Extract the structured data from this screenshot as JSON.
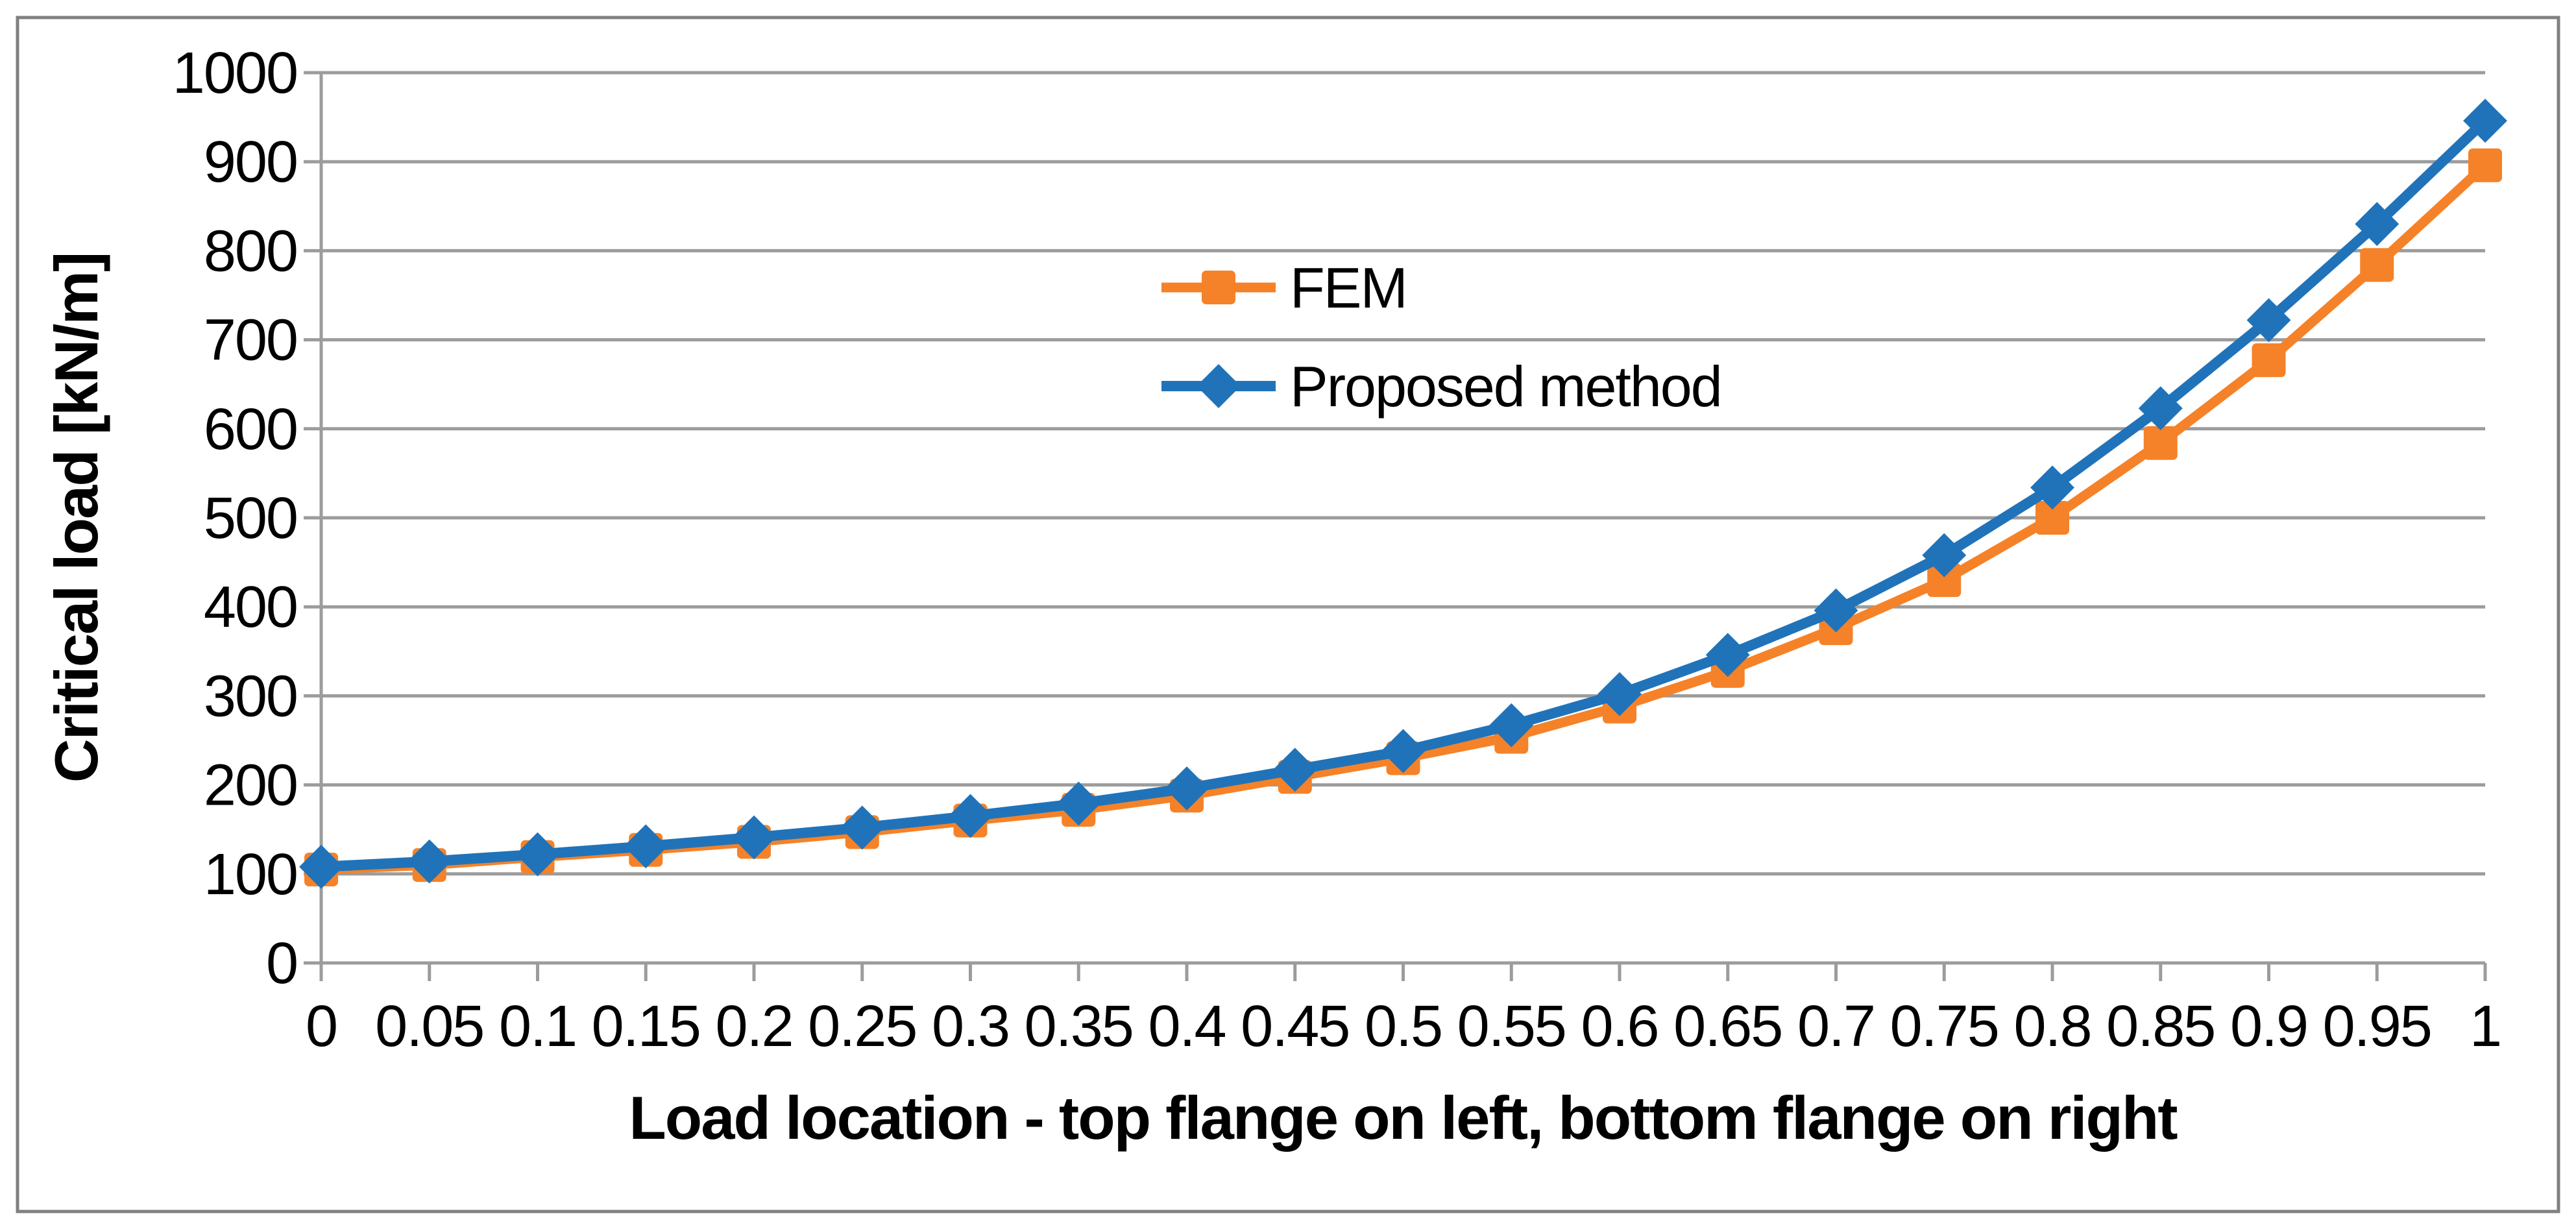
{
  "chart_data": {
    "type": "line",
    "title": "",
    "xlabel": "Load location - top flange on left, bottom flange on right",
    "ylabel": "Critical load [kN/m]",
    "x_tick_labels": [
      "0",
      "0.05",
      "0.1",
      "0.15",
      "0.2",
      "0.25",
      "0.3",
      "0.35",
      "0.4",
      "0.45",
      "0.5",
      "0.55",
      "0.6",
      "0.65",
      "0.7",
      "0.75",
      "0.8",
      "0.85",
      "0.9",
      "0.95",
      "1"
    ],
    "x_values": [
      0,
      0.05,
      0.1,
      0.15,
      0.2,
      0.25,
      0.3,
      0.35,
      0.4,
      0.45,
      0.5,
      0.55,
      0.6,
      0.65,
      0.7,
      0.75,
      0.8,
      0.85,
      0.9,
      0.95,
      1
    ],
    "y_ticks": [
      0,
      100,
      200,
      300,
      400,
      500,
      600,
      700,
      800,
      900,
      1000
    ],
    "ylim": [
      0,
      1000
    ],
    "xlim": [
      0,
      1
    ],
    "grid": "horizontal",
    "legend_position": "inside upper-center-left, no border",
    "series": [
      {
        "name": "FEM",
        "marker": "square",
        "color": "#F58228",
        "values": [
          105,
          110,
          119,
          127,
          136,
          147,
          160,
          172,
          188,
          209,
          230,
          254,
          288,
          328,
          376,
          430,
          500,
          584,
          677,
          784,
          896
        ]
      },
      {
        "name": "Proposed method",
        "marker": "diamond",
        "color": "#2073B9",
        "values": [
          108,
          114,
          122,
          131,
          141,
          152,
          165,
          179,
          196,
          217,
          238,
          267,
          302,
          346,
          396,
          458,
          534,
          623,
          722,
          830,
          946
        ]
      }
    ]
  },
  "colors": {
    "background": "#FFFFFF",
    "frame": "#808080",
    "gridline": "#9C9C9C",
    "axis": "#9C9C9C",
    "text": "#000000"
  }
}
